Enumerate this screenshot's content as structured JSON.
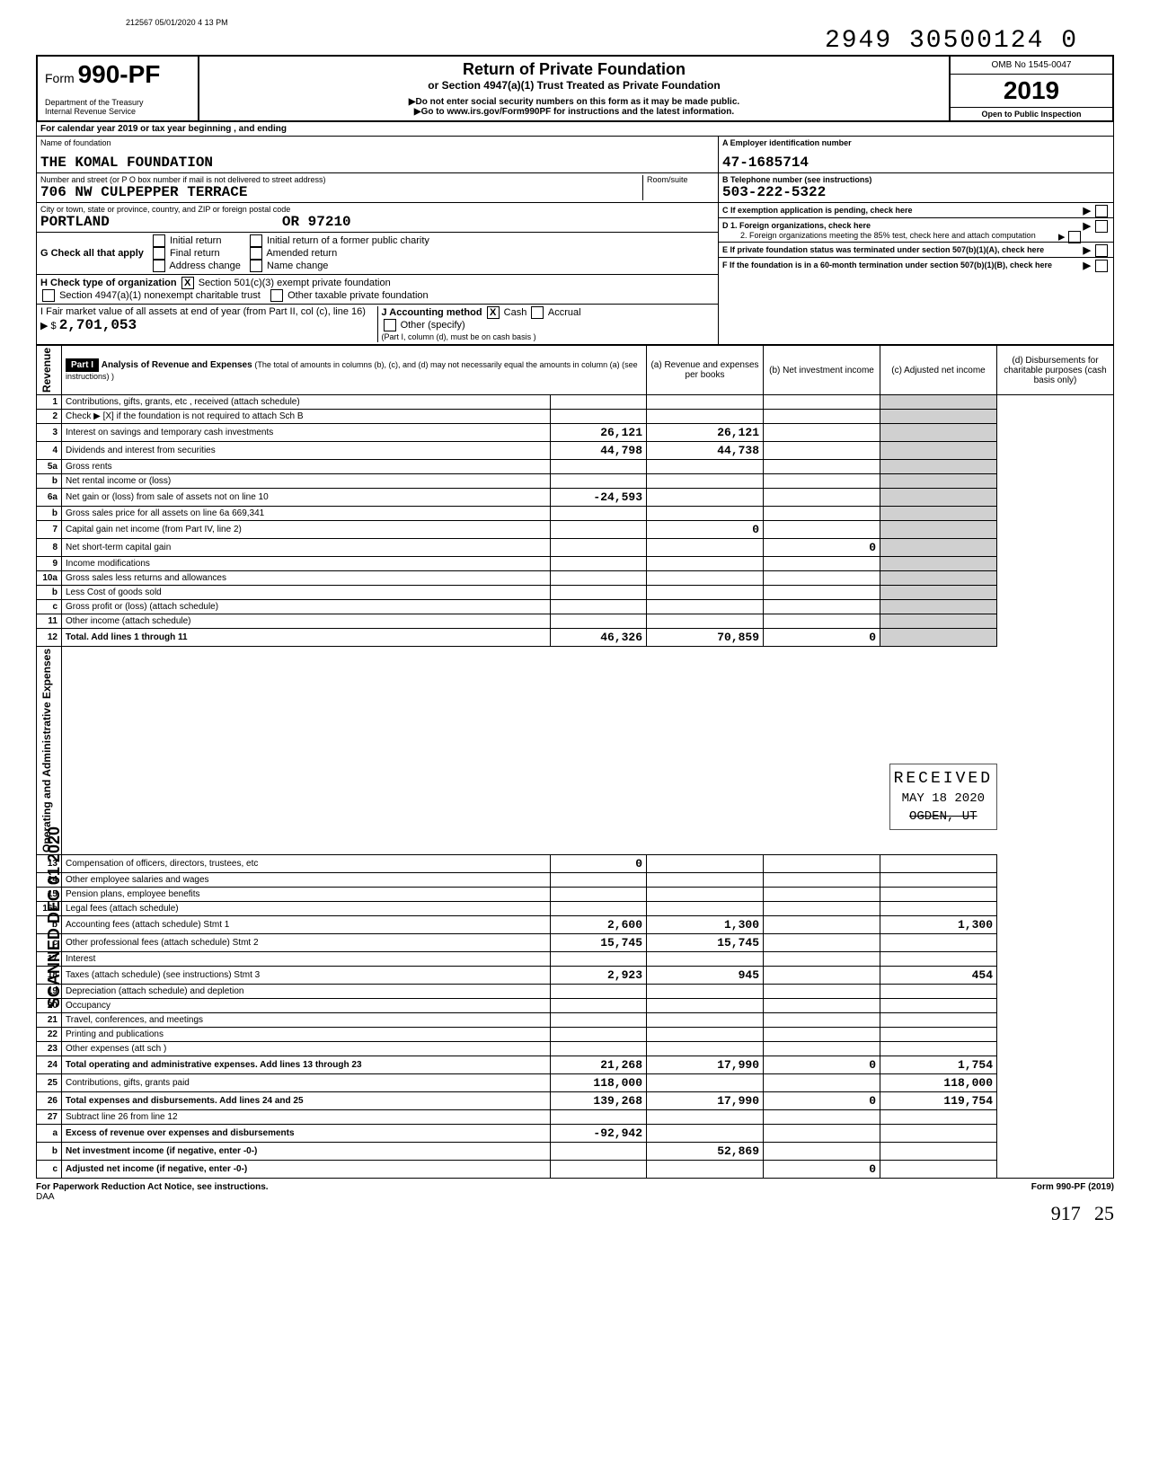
{
  "scan_header": "212567 05/01/2020 4 13 PM",
  "dln": "2949 30500124 0",
  "form": {
    "prefix": "Form",
    "number": "990-PF",
    "dept": "Department of the Treasury",
    "irs": "Internal Revenue Service",
    "title": "Return of Private Foundation",
    "subtitle": "or Section 4947(a)(1) Trust Treated as Private Foundation",
    "warn": "▶Do not enter social security numbers on this form as it may be made public.",
    "goto": "▶Go to www.irs.gov/Form990PF for instructions and the latest information.",
    "omb": "OMB No 1545-0047",
    "year": "2019",
    "inspection": "Open to Public Inspection"
  },
  "calendar": "For calendar year 2019 or tax year beginning                        , and ending",
  "name_label": "Name of foundation",
  "foundation_name": "THE KOMAL FOUNDATION",
  "addr_label": "Number and street (or P O box number if mail is not delivered to street address)",
  "room_label": "Room/suite",
  "address": "706 NW CULPEPPER TERRACE",
  "city_label": "City or town, state or province, country, and ZIP or foreign postal code",
  "city": "PORTLAND                    OR 97210",
  "ein_label": "A   Employer identification number",
  "ein": "47-1685714",
  "phone_label": "B   Telephone number (see instructions)",
  "phone": "503-222-5322",
  "c_label": "C   If exemption application is pending, check here",
  "d1": "D   1. Foreign organizations, check here",
  "d2": "2. Foreign organizations meeting the 85% test, check here and attach computation",
  "e_label": "E   If private foundation status was terminated under section 507(b)(1)(A), check here",
  "f_label": "F   If the foundation is in a 60-month termination under section 507(b)(1)(B), check here",
  "g_label": "G  Check all that apply",
  "g_opts": [
    "Initial return",
    "Final return",
    "Address change",
    "Initial return of a former public charity",
    "Amended return",
    "Name change"
  ],
  "h_label": "H  Check type of organization",
  "h_opts": [
    "Section 501(c)(3) exempt private foundation",
    "Section 4947(a)(1) nonexempt charitable trust",
    "Other taxable private foundation"
  ],
  "i_label": "I   Fair market value of all assets at end of year (from Part II, col (c), line 16) ▶  $",
  "i_value": "2,701,053",
  "j_label": "J  Accounting method",
  "j_opts": [
    "Cash",
    "Accrual",
    "Other (specify)"
  ],
  "j_note": "(Part I, column (d), must be on cash basis )",
  "part1": {
    "label": "Part I",
    "title": "Analysis of Revenue and Expenses",
    "note": "(The total of amounts in columns (b), (c), and (d) may not necessarily equal the amounts in column (a) (see instructions) )",
    "col_a": "(a) Revenue and expenses per books",
    "col_b": "(b) Net investment income",
    "col_c": "(c) Adjusted net income",
    "col_d": "(d) Disbursements for charitable purposes (cash basis only)"
  },
  "revenue_label": "Revenue",
  "expenses_label": "Operating and Administrative Expenses",
  "margin_stamp": "SCANNED DEC 01 2020",
  "rows": [
    {
      "n": "1",
      "desc": "Contributions, gifts, grants, etc , received (attach schedule)",
      "a": "",
      "b": "",
      "c": "",
      "d": ""
    },
    {
      "n": "2",
      "desc": "Check ▶  [X]  if the foundation is not required to attach Sch B",
      "a": "",
      "b": "",
      "c": "",
      "d": ""
    },
    {
      "n": "3",
      "desc": "Interest on savings and temporary cash investments",
      "a": "26,121",
      "b": "26,121",
      "c": "",
      "d": ""
    },
    {
      "n": "4",
      "desc": "Dividends and interest from securities",
      "a": "44,798",
      "b": "44,738",
      "c": "",
      "d": ""
    },
    {
      "n": "5a",
      "desc": "Gross rents",
      "a": "",
      "b": "",
      "c": "",
      "d": ""
    },
    {
      "n": "b",
      "desc": "Net rental income or (loss)",
      "a": "",
      "b": "",
      "c": "",
      "d": ""
    },
    {
      "n": "6a",
      "desc": "Net gain or (loss) from sale of assets not on line 10",
      "a": "-24,593",
      "b": "",
      "c": "",
      "d": ""
    },
    {
      "n": "b",
      "desc": "Gross sales price for all assets on line 6a              669,341",
      "a": "",
      "b": "",
      "c": "",
      "d": ""
    },
    {
      "n": "7",
      "desc": "Capital gain net income (from Part IV, line 2)",
      "a": "",
      "b": "0",
      "c": "",
      "d": ""
    },
    {
      "n": "8",
      "desc": "Net short-term capital gain",
      "a": "",
      "b": "",
      "c": "0",
      "d": ""
    },
    {
      "n": "9",
      "desc": "Income modifications",
      "a": "",
      "b": "",
      "c": "",
      "d": ""
    },
    {
      "n": "10a",
      "desc": "Gross sales less returns and allowances",
      "a": "",
      "b": "",
      "c": "",
      "d": ""
    },
    {
      "n": "b",
      "desc": "Less Cost of goods sold",
      "a": "",
      "b": "",
      "c": "",
      "d": ""
    },
    {
      "n": "c",
      "desc": "Gross profit or (loss) (attach schedule)",
      "a": "",
      "b": "",
      "c": "",
      "d": ""
    },
    {
      "n": "11",
      "desc": "Other income (attach schedule)",
      "a": "",
      "b": "",
      "c": "",
      "d": ""
    },
    {
      "n": "12",
      "desc": "Total. Add lines 1 through 11",
      "a": "46,326",
      "b": "70,859",
      "c": "0",
      "d": "",
      "bold": true
    },
    {
      "n": "13",
      "desc": "Compensation of officers, directors, trustees, etc",
      "a": "0",
      "b": "",
      "c": "",
      "d": ""
    },
    {
      "n": "14",
      "desc": "Other employee salaries and wages",
      "a": "",
      "b": "",
      "c": "",
      "d": ""
    },
    {
      "n": "15",
      "desc": "Pension plans, employee benefits",
      "a": "",
      "b": "",
      "c": "",
      "d": ""
    },
    {
      "n": "16a",
      "desc": "Legal fees (attach schedule)",
      "a": "",
      "b": "",
      "c": "",
      "d": ""
    },
    {
      "n": "b",
      "desc": "Accounting fees (attach schedule)        Stmt 1",
      "a": "2,600",
      "b": "1,300",
      "c": "",
      "d": "1,300"
    },
    {
      "n": "c",
      "desc": "Other professional fees (attach schedule)    Stmt 2",
      "a": "15,745",
      "b": "15,745",
      "c": "",
      "d": ""
    },
    {
      "n": "17",
      "desc": "Interest",
      "a": "",
      "b": "",
      "c": "",
      "d": ""
    },
    {
      "n": "18",
      "desc": "Taxes (attach schedule) (see instructions)      Stmt 3",
      "a": "2,923",
      "b": "945",
      "c": "",
      "d": "454"
    },
    {
      "n": "19",
      "desc": "Depreciation (attach schedule) and depletion",
      "a": "",
      "b": "",
      "c": "",
      "d": ""
    },
    {
      "n": "20",
      "desc": "Occupancy",
      "a": "",
      "b": "",
      "c": "",
      "d": ""
    },
    {
      "n": "21",
      "desc": "Travel, conferences, and meetings",
      "a": "",
      "b": "",
      "c": "",
      "d": ""
    },
    {
      "n": "22",
      "desc": "Printing and publications",
      "a": "",
      "b": "",
      "c": "",
      "d": ""
    },
    {
      "n": "23",
      "desc": "Other expenses (att sch )",
      "a": "",
      "b": "",
      "c": "",
      "d": ""
    },
    {
      "n": "24",
      "desc": "Total operating and administrative expenses. Add lines 13 through 23",
      "a": "21,268",
      "b": "17,990",
      "c": "0",
      "d": "1,754",
      "bold": true
    },
    {
      "n": "25",
      "desc": "Contributions, gifts, grants paid",
      "a": "118,000",
      "b": "",
      "c": "",
      "d": "118,000"
    },
    {
      "n": "26",
      "desc": "Total expenses and disbursements. Add lines 24 and 25",
      "a": "139,268",
      "b": "17,990",
      "c": "0",
      "d": "119,754",
      "bold": true
    },
    {
      "n": "27",
      "desc": "Subtract line 26 from line 12",
      "a": "",
      "b": "",
      "c": "",
      "d": ""
    },
    {
      "n": "a",
      "desc": "Excess of revenue over expenses and disbursements",
      "a": "-92,942",
      "b": "",
      "c": "",
      "d": "",
      "bold": true
    },
    {
      "n": "b",
      "desc": "Net investment income (if negative, enter -0-)",
      "a": "",
      "b": "52,869",
      "c": "",
      "d": "",
      "bold": true
    },
    {
      "n": "c",
      "desc": "Adjusted net income (if negative, enter -0-)",
      "a": "",
      "b": "",
      "c": "0",
      "d": "",
      "bold": true
    }
  ],
  "received_stamp": {
    "line1": "RECEIVED",
    "line2": "MAY 18 2020",
    "line3": "OGDEN, UT"
  },
  "footer_left": "For Paperwork Reduction Act Notice, see instructions.",
  "footer_daa": "DAA",
  "footer_form": "Form 990-PF (2019)",
  "hand1": "917",
  "hand2": "25"
}
